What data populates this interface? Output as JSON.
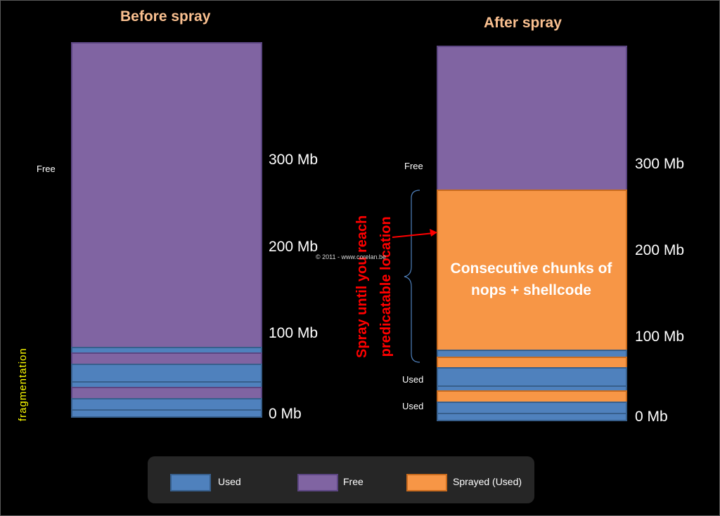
{
  "titles": {
    "before": "Before spray",
    "after": "After spray"
  },
  "axis_ticks": [
    "300 Mb",
    "200 Mb",
    "100 Mb",
    "0 Mb"
  ],
  "labels": {
    "free": "Free",
    "used_1": "Used",
    "used_2": "Used",
    "fragmentation": "fragmentation",
    "spray_line_1": "Spray until you reach",
    "spray_line_2": "predicatable location",
    "sprayed_block_text": "Consecutive chunks of nops + shellcode",
    "copyright": "© 2011 - www.corelan.be"
  },
  "legend": {
    "items": [
      {
        "label": "Used",
        "color": "#4f81bd"
      },
      {
        "label": "Free",
        "color": "#8064a2"
      },
      {
        "label": "Sprayed (Used)",
        "color": "#f79646"
      }
    ]
  },
  "colors": {
    "used": "#4f81bd",
    "free": "#8064a2",
    "sprayed": "#f79646",
    "title": "#fac090",
    "annotation": "#ff0000",
    "fragmentation": "#ffff00"
  }
}
